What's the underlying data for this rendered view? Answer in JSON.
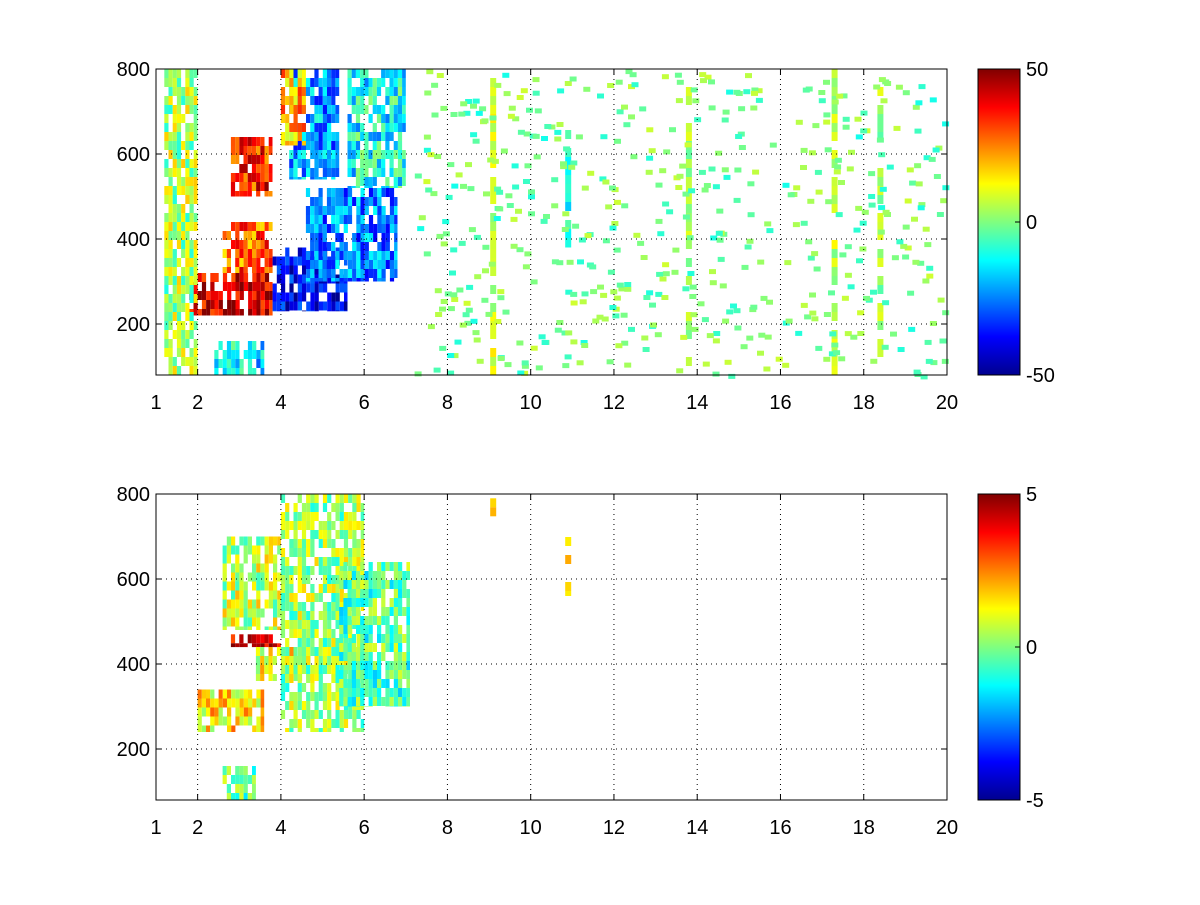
{
  "figure": {
    "background": "#ffffff",
    "colormap": "jet",
    "colormap_stops": [
      "#00008f",
      "#0000ff",
      "#00ffff",
      "#ffff00",
      "#ff0000",
      "#800000"
    ]
  },
  "chart_data": [
    {
      "type": "heatmap",
      "name": "top-panel",
      "title": "",
      "xlabel": "",
      "ylabel": "",
      "xlim": [
        1,
        20
      ],
      "ylim": [
        80,
        800
      ],
      "xticks": [
        1,
        2,
        4,
        6,
        8,
        10,
        12,
        14,
        16,
        18,
        20
      ],
      "yticks": [
        200,
        400,
        600,
        800
      ],
      "grid": true,
      "colorbar": {
        "min": -50,
        "max": 50,
        "ticks": [
          50,
          0,
          -50
        ]
      },
      "regions": [
        {
          "x": [
            1.8,
            3.8
          ],
          "y": [
            220,
            320
          ],
          "value": 42
        },
        {
          "x": [
            2.6,
            3.8
          ],
          "y": [
            320,
            440
          ],
          "value": 28
        },
        {
          "x": [
            2.8,
            3.8
          ],
          "y": [
            500,
            640
          ],
          "value": 35
        },
        {
          "x": [
            3.8,
            5.6
          ],
          "y": [
            230,
            380
          ],
          "value": -40
        },
        {
          "x": [
            4.6,
            6.8
          ],
          "y": [
            300,
            520
          ],
          "value": -25
        },
        {
          "x": [
            4.2,
            5.4
          ],
          "y": [
            540,
            800
          ],
          "value": -22
        },
        {
          "x": [
            4.0,
            4.6
          ],
          "y": [
            620,
            800
          ],
          "value": 20
        },
        {
          "x": [
            2.4,
            3.6
          ],
          "y": [
            80,
            160
          ],
          "value": -15
        },
        {
          "x": [
            1.2,
            2.0
          ],
          "y": [
            80,
            800
          ],
          "value": 4
        },
        {
          "x": [
            5.6,
            7.0
          ],
          "y": [
            520,
            800
          ],
          "value": -12
        }
      ],
      "stripes": [
        {
          "x": 9.1,
          "y": [
            80,
            800
          ],
          "value": 8
        },
        {
          "x": 10.9,
          "y": [
            380,
            720
          ],
          "value": -10
        },
        {
          "x": 13.8,
          "y": [
            80,
            800
          ],
          "value": 4
        },
        {
          "x": 17.3,
          "y": [
            80,
            800
          ],
          "value": 6
        },
        {
          "x": 18.4,
          "y": [
            80,
            800
          ],
          "value": 3
        }
      ]
    },
    {
      "type": "heatmap",
      "name": "bottom-panel",
      "title": "",
      "xlabel": "",
      "ylabel": "",
      "xlim": [
        1,
        20
      ],
      "ylim": [
        80,
        800
      ],
      "xticks": [
        1,
        2,
        4,
        6,
        8,
        10,
        12,
        14,
        16,
        18,
        20
      ],
      "yticks": [
        200,
        400,
        600,
        800
      ],
      "grid": true,
      "colorbar": {
        "min": -5,
        "max": 5,
        "ticks": [
          5,
          0,
          -5
        ]
      },
      "regions": [
        {
          "x": [
            2.0,
            3.6
          ],
          "y": [
            240,
            340
          ],
          "value": 1.5
        },
        {
          "x": [
            2.8,
            4.0
          ],
          "y": [
            440,
            470
          ],
          "value": 4.2
        },
        {
          "x": [
            2.6,
            4.0
          ],
          "y": [
            480,
            700
          ],
          "value": 0.6
        },
        {
          "x": [
            3.4,
            5.0
          ],
          "y": [
            360,
            440
          ],
          "value": 1.2
        },
        {
          "x": [
            4.0,
            6.0
          ],
          "y": [
            240,
            800
          ],
          "value": 0.3
        },
        {
          "x": [
            5.4,
            7.1
          ],
          "y": [
            300,
            640
          ],
          "value": -0.4
        },
        {
          "x": [
            2.6,
            3.4
          ],
          "y": [
            80,
            160
          ],
          "value": -0.2
        }
      ],
      "stripes": [
        {
          "x": 10.9,
          "y": [
            560,
            720
          ],
          "value": 1.8
        },
        {
          "x": 9.1,
          "y": [
            740,
            790
          ],
          "value": 1.5
        }
      ]
    }
  ]
}
